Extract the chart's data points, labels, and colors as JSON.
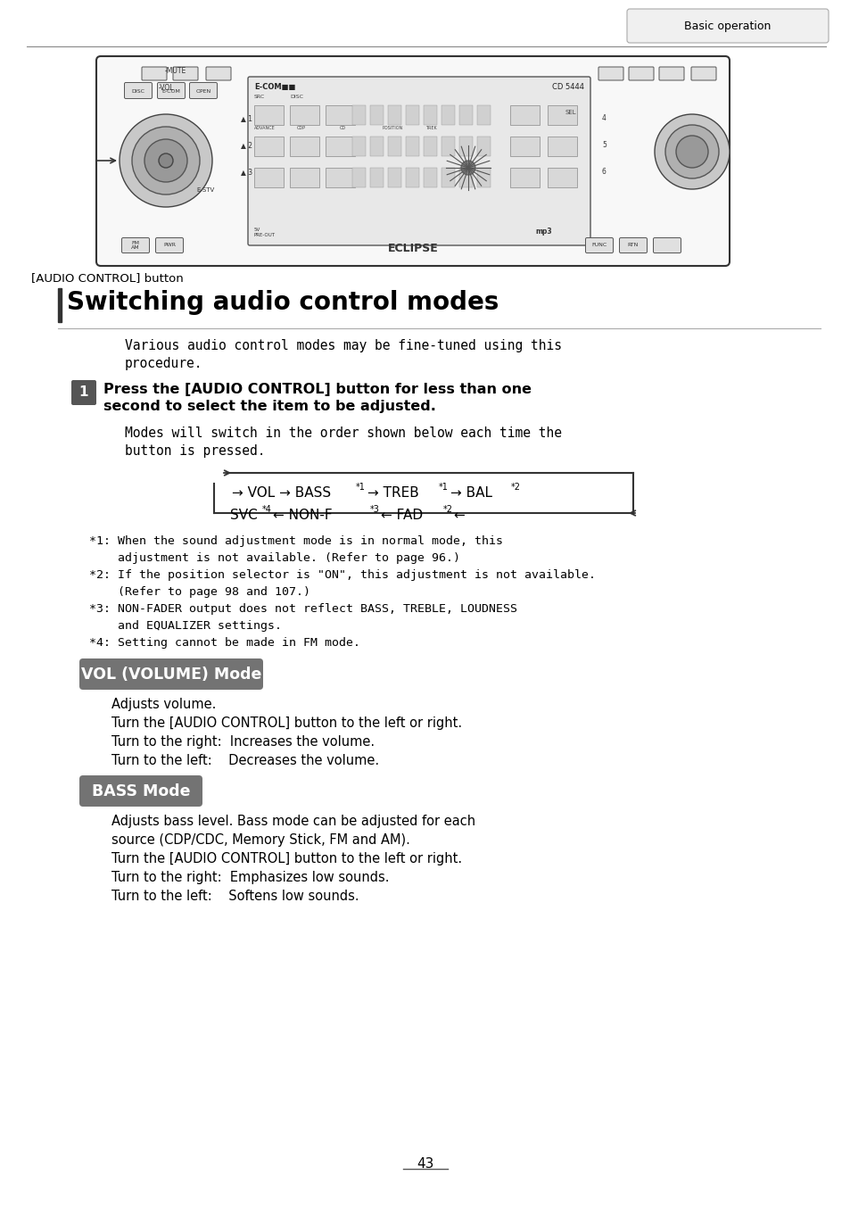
{
  "page_bg": "#ffffff",
  "header_tab_text": "Basic operation",
  "header_tab_bg": "#f0f0f0",
  "header_tab_border": "#aaaaaa",
  "header_line_color": "#888888",
  "section_bar_color": "#333333",
  "section_title": "Switching audio control modes",
  "section_title_fontsize": 20,
  "intro_text1": "Various audio control modes may be fine-tuned using this",
  "intro_text2": "procedure.",
  "step_number": "1",
  "step_bg": "#555555",
  "step_text1": "Press the [AUDIO CONTROL] button for less than one",
  "step_text2": "second to select the item to be adjusted.",
  "switch_text1": "Modes will switch in the order shown below each time the",
  "switch_text2": "button is pressed.",
  "footnote1a": "*1: When the sound adjustment mode is in normal mode, this",
  "footnote1b": "    adjustment is not available. (Refer to page 96.)",
  "footnote2a": "*2: If the position selector is \"ON\", this adjustment is not available.",
  "footnote2b": "    (Refer to page 98 and 107.)",
  "footnote3a": "*3: NON-FADER output does not reflect BASS, TREBLE, LOUDNESS",
  "footnote3b": "    and EQUALIZER settings.",
  "footnote4": "*4: Setting cannot be made in FM mode.",
  "vol_mode_bg": "#737373",
  "vol_mode_text": "VOL (VOLUME) Mode",
  "vol_desc1": "Adjusts volume.",
  "vol_desc2": "Turn the [AUDIO CONTROL] button to the left or right.",
  "vol_desc3": "Turn to the right:  Increases the volume.",
  "vol_desc4": "Turn to the left:    Decreases the volume.",
  "bass_mode_bg": "#737373",
  "bass_mode_text": "BASS Mode",
  "bass_desc1a": "Adjusts bass level. Bass mode can be adjusted for each",
  "bass_desc1b": "source (CDP/CDC, Memory Stick, FM and AM).",
  "bass_desc2": "Turn the [AUDIO CONTROL] button to the left or right.",
  "bass_desc3": "Turn to the right:  Emphasizes low sounds.",
  "bass_desc4": "Turn to the left:    Softens low sounds.",
  "page_number": "43",
  "audio_control_label": "[AUDIO CONTROL] button"
}
